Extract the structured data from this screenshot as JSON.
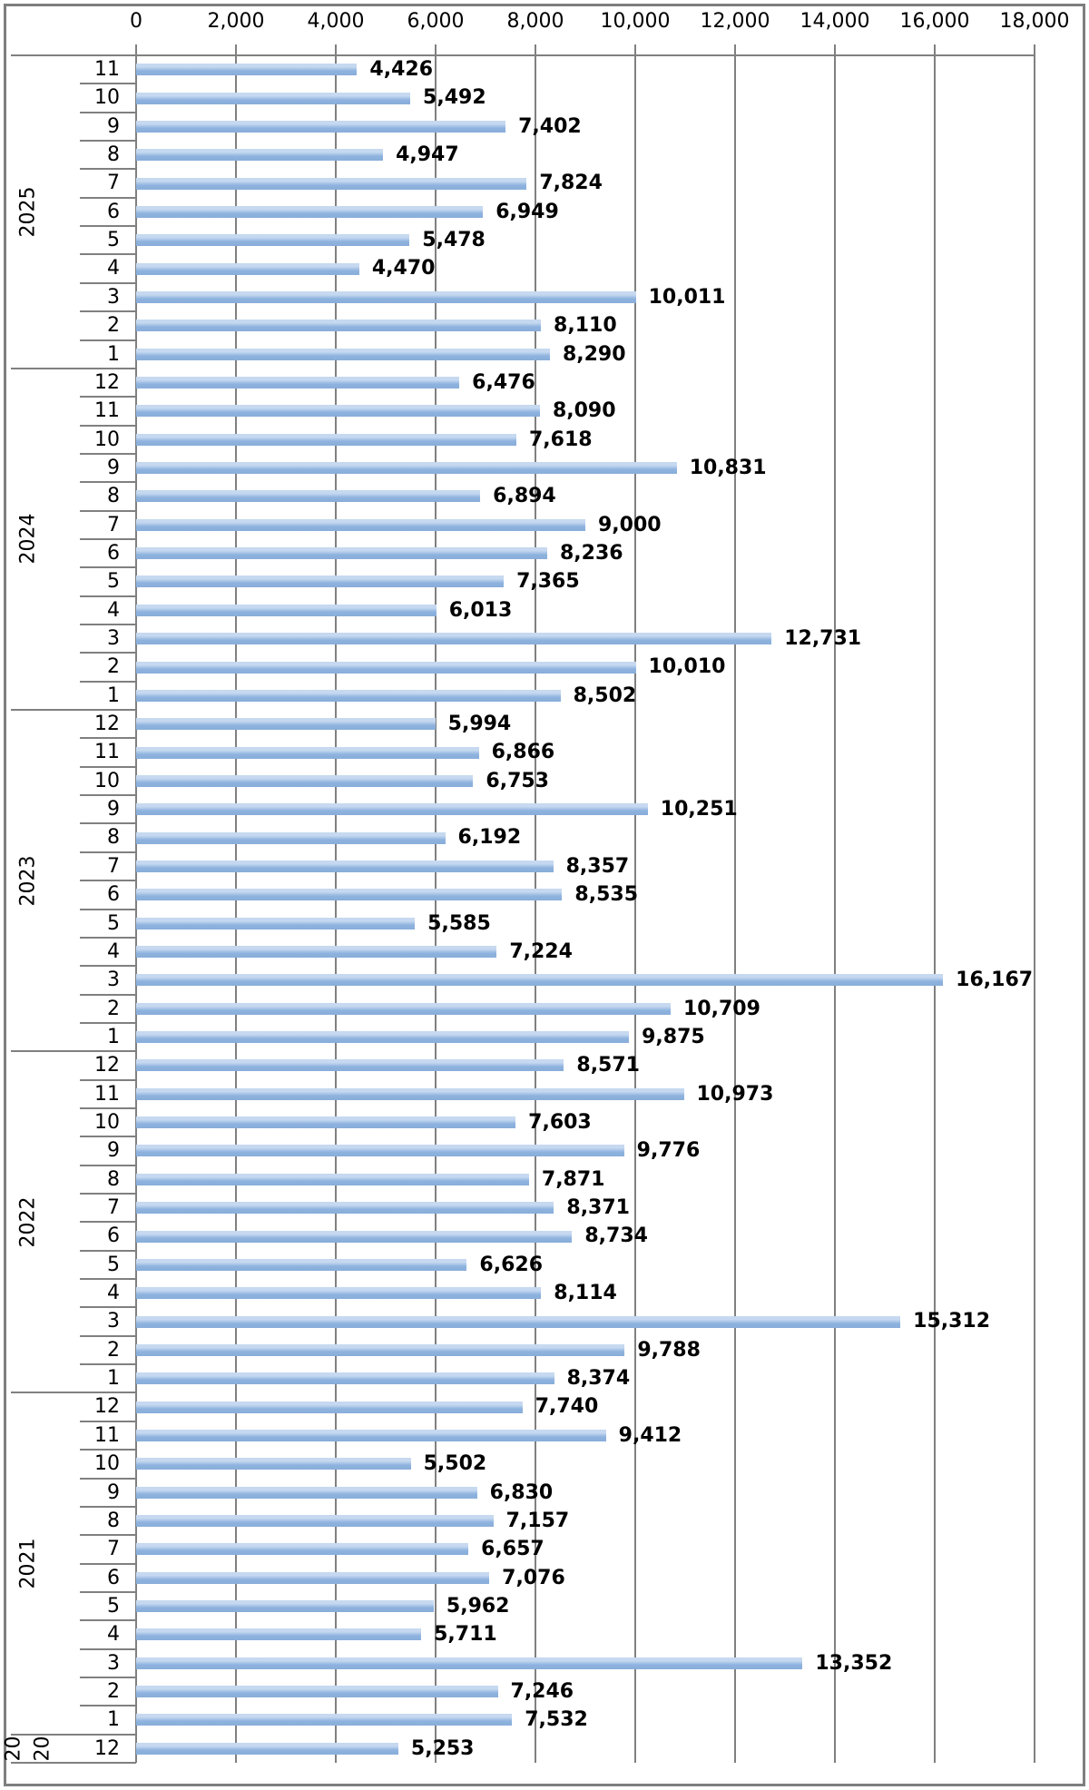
{
  "styles": {
    "bar_color": "#8fb3df",
    "bar_highlight": "#c6d9f0",
    "bar_dark": "#88add9",
    "grid_color": "#808080",
    "frame_color": "#7f7f7f",
    "text_color": "#000000",
    "background": "#ffffff"
  },
  "chart_data": {
    "type": "bar",
    "orientation": "horizontal",
    "title": "",
    "xlabel": "",
    "ylabel": "",
    "xlim": [
      0,
      18000
    ],
    "grid": true,
    "x_ticks": [
      {
        "value": 0,
        "label": "0"
      },
      {
        "value": 2000,
        "label": "2,000"
      },
      {
        "value": 4000,
        "label": "4,000"
      },
      {
        "value": 6000,
        "label": "6,000"
      },
      {
        "value": 8000,
        "label": "8,000"
      },
      {
        "value": 10000,
        "label": "10,000"
      },
      {
        "value": 12000,
        "label": "12,000"
      },
      {
        "value": 14000,
        "label": "14,000"
      },
      {
        "value": 16000,
        "label": "16,000"
      },
      {
        "value": 18000,
        "label": "18,000"
      }
    ],
    "groups": [
      {
        "year": "2025",
        "year_lines": [
          "2025"
        ],
        "rows": [
          {
            "month": "11",
            "value": 4426,
            "label": "4,426"
          },
          {
            "month": "10",
            "value": 5492,
            "label": "5,492"
          },
          {
            "month": "9",
            "value": 7402,
            "label": "7,402"
          },
          {
            "month": "8",
            "value": 4947,
            "label": "4,947"
          },
          {
            "month": "7",
            "value": 7824,
            "label": "7,824"
          },
          {
            "month": "6",
            "value": 6949,
            "label": "6,949"
          },
          {
            "month": "5",
            "value": 5478,
            "label": "5,478"
          },
          {
            "month": "4",
            "value": 4470,
            "label": "4,470"
          },
          {
            "month": "3",
            "value": 10011,
            "label": "10,011"
          },
          {
            "month": "2",
            "value": 8110,
            "label": "8,110"
          },
          {
            "month": "1",
            "value": 8290,
            "label": "8,290"
          }
        ]
      },
      {
        "year": "2024",
        "year_lines": [
          "2024"
        ],
        "rows": [
          {
            "month": "12",
            "value": 6476,
            "label": "6,476"
          },
          {
            "month": "11",
            "value": 8090,
            "label": "8,090"
          },
          {
            "month": "10",
            "value": 7618,
            "label": "7,618"
          },
          {
            "month": "9",
            "value": 10831,
            "label": "10,831"
          },
          {
            "month": "8",
            "value": 6894,
            "label": "6,894"
          },
          {
            "month": "7",
            "value": 9000,
            "label": "9,000"
          },
          {
            "month": "6",
            "value": 8236,
            "label": "8,236"
          },
          {
            "month": "5",
            "value": 7365,
            "label": "7,365"
          },
          {
            "month": "4",
            "value": 6013,
            "label": "6,013"
          },
          {
            "month": "3",
            "value": 12731,
            "label": "12,731"
          },
          {
            "month": "2",
            "value": 10010,
            "label": "10,010"
          },
          {
            "month": "1",
            "value": 8502,
            "label": "8,502"
          }
        ]
      },
      {
        "year": "2023",
        "year_lines": [
          "2023"
        ],
        "rows": [
          {
            "month": "12",
            "value": 5994,
            "label": "5,994"
          },
          {
            "month": "11",
            "value": 6866,
            "label": "6,866"
          },
          {
            "month": "10",
            "value": 6753,
            "label": "6,753"
          },
          {
            "month": "9",
            "value": 10251,
            "label": "10,251"
          },
          {
            "month": "8",
            "value": 6192,
            "label": "6,192"
          },
          {
            "month": "7",
            "value": 8357,
            "label": "8,357"
          },
          {
            "month": "6",
            "value": 8535,
            "label": "8,535"
          },
          {
            "month": "5",
            "value": 5585,
            "label": "5,585"
          },
          {
            "month": "4",
            "value": 7224,
            "label": "7,224"
          },
          {
            "month": "3",
            "value": 16167,
            "label": "16,167"
          },
          {
            "month": "2",
            "value": 10709,
            "label": "10,709"
          },
          {
            "month": "1",
            "value": 9875,
            "label": "9,875"
          }
        ]
      },
      {
        "year": "2022",
        "year_lines": [
          "2022"
        ],
        "rows": [
          {
            "month": "12",
            "value": 8571,
            "label": "8,571"
          },
          {
            "month": "11",
            "value": 10973,
            "label": "10,973"
          },
          {
            "month": "10",
            "value": 7603,
            "label": "7,603"
          },
          {
            "month": "9",
            "value": 9776,
            "label": "9,776"
          },
          {
            "month": "8",
            "value": 7871,
            "label": "7,871"
          },
          {
            "month": "7",
            "value": 8371,
            "label": "8,371"
          },
          {
            "month": "6",
            "value": 8734,
            "label": "8,734"
          },
          {
            "month": "5",
            "value": 6626,
            "label": "6,626"
          },
          {
            "month": "4",
            "value": 8114,
            "label": "8,114"
          },
          {
            "month": "3",
            "value": 15312,
            "label": "15,312"
          },
          {
            "month": "2",
            "value": 9788,
            "label": "9,788"
          },
          {
            "month": "1",
            "value": 8374,
            "label": "8,374"
          }
        ]
      },
      {
        "year": "2021",
        "year_lines": [
          "2021"
        ],
        "rows": [
          {
            "month": "12",
            "value": 7740,
            "label": "7,740"
          },
          {
            "month": "11",
            "value": 9412,
            "label": "9,412"
          },
          {
            "month": "10",
            "value": 5502,
            "label": "5,502"
          },
          {
            "month": "9",
            "value": 6830,
            "label": "6,830"
          },
          {
            "month": "8",
            "value": 7157,
            "label": "7,157"
          },
          {
            "month": "7",
            "value": 6657,
            "label": "6,657"
          },
          {
            "month": "6",
            "value": 7076,
            "label": "7,076"
          },
          {
            "month": "5",
            "value": 5962,
            "label": "5,962"
          },
          {
            "month": "4",
            "value": 5711,
            "label": "5,711"
          },
          {
            "month": "3",
            "value": 13352,
            "label": "13,352"
          },
          {
            "month": "2",
            "value": 7246,
            "label": "7,246"
          },
          {
            "month": "1",
            "value": 7532,
            "label": "7,532"
          }
        ]
      },
      {
        "year": "2020",
        "year_lines": [
          "20",
          "20"
        ],
        "rows": [
          {
            "month": "12",
            "value": 5253,
            "label": "5,253"
          }
        ]
      }
    ]
  }
}
